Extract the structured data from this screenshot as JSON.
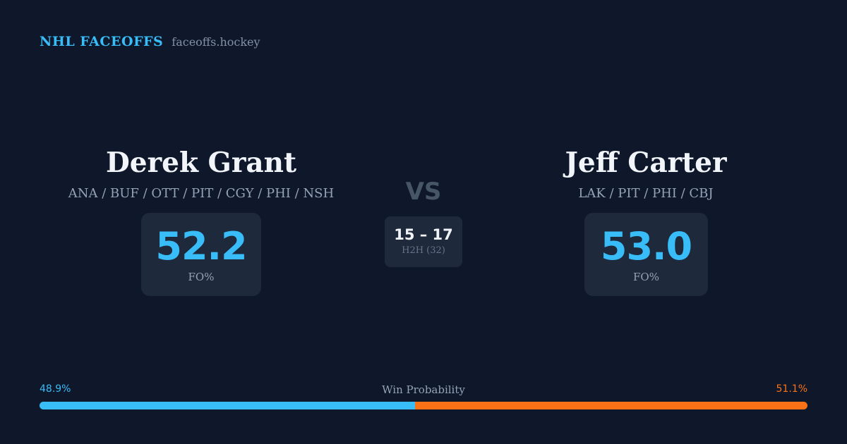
{
  "header": {
    "brand": "NHL FACEOFFS",
    "site": "faceoffs.hockey"
  },
  "player_left": {
    "name": "Derek Grant",
    "teams": "ANA / BUF / OTT / PIT / CGY / PHI / NSH",
    "fo_pct": "52.2",
    "fo_label": "FO%"
  },
  "player_right": {
    "name": "Jeff Carter",
    "teams": "LAK / PIT / PHI / CBJ",
    "fo_pct": "53.0",
    "fo_label": "FO%"
  },
  "versus": {
    "label": "VS",
    "h2h_score": "15 – 17",
    "h2h_label": "H2H (32)"
  },
  "win_probability": {
    "label": "Win Probability",
    "left_text": "48.9%",
    "right_text": "51.1%",
    "left_value": 48.9,
    "right_value": 51.1
  },
  "colors": {
    "background": "#0f172a",
    "accent_blue": "#38bdf8",
    "accent_orange": "#f97316",
    "card": "#1e293b"
  }
}
